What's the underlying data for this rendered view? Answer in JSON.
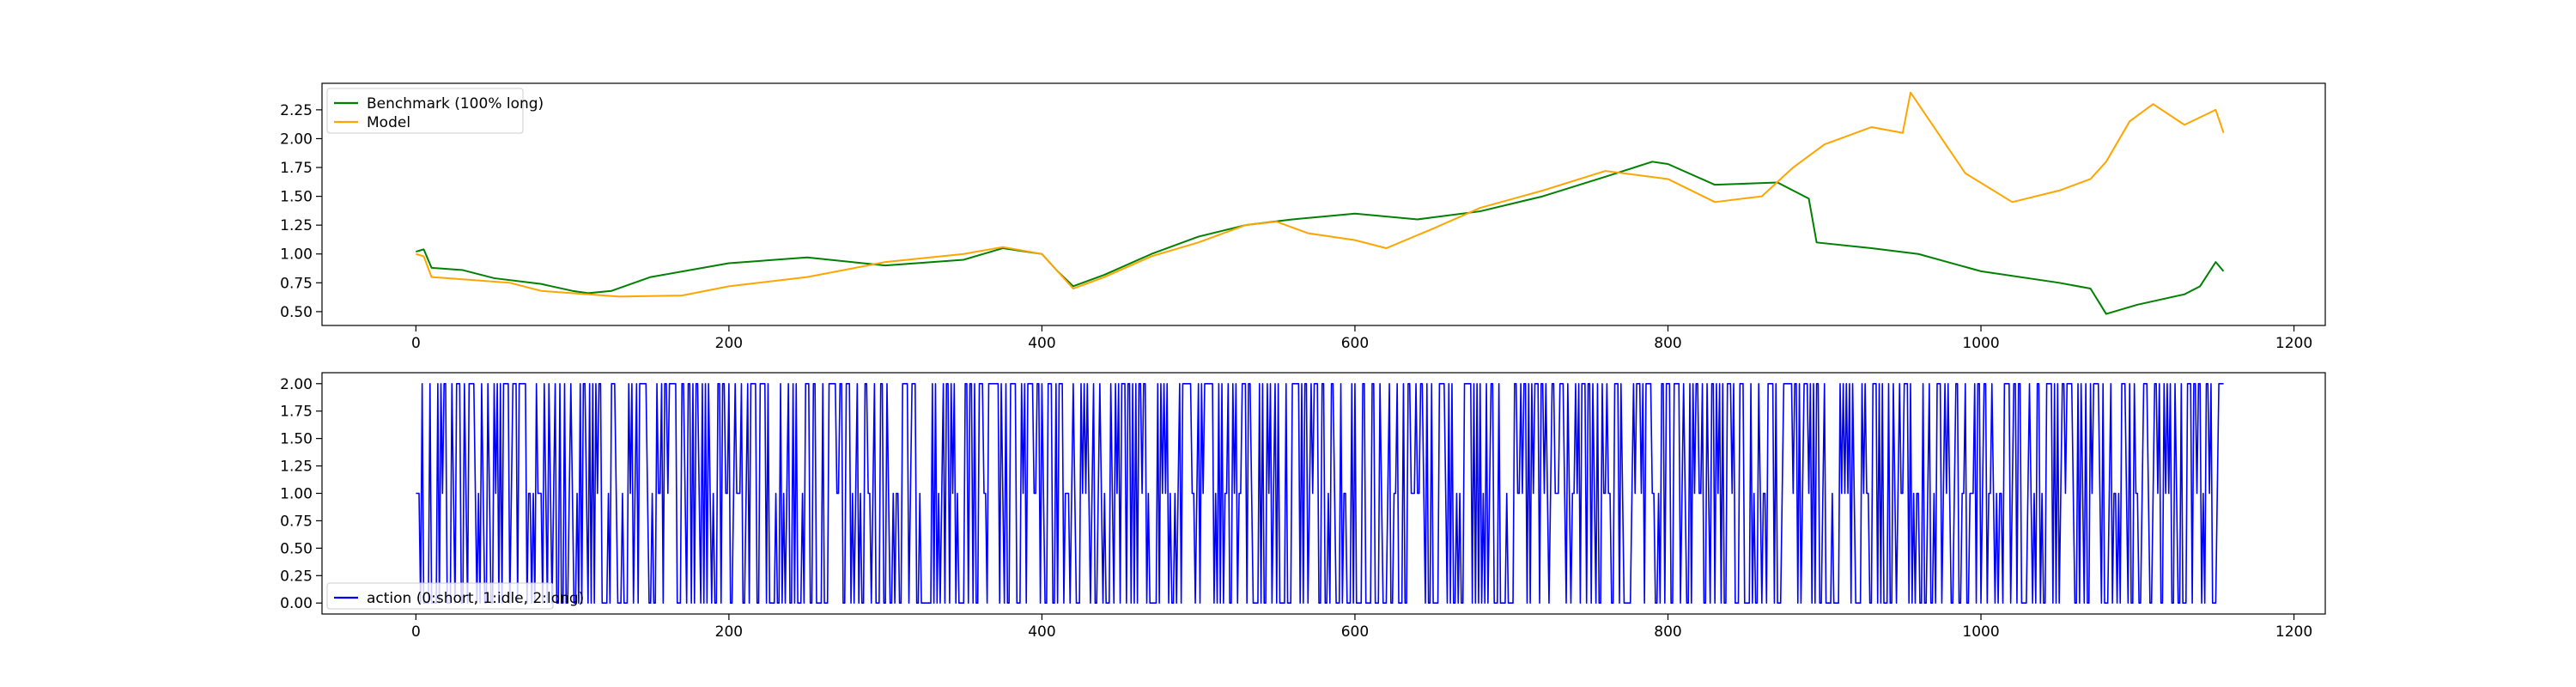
{
  "chart_data": [
    {
      "type": "line",
      "title": "",
      "xlabel": "",
      "ylabel": "",
      "xlim": [
        -60,
        1220
      ],
      "ylim": [
        0.38,
        2.48
      ],
      "x_ticks": [
        0,
        200,
        400,
        600,
        800,
        1000,
        1200
      ],
      "y_ticks": [
        0.5,
        0.75,
        1.0,
        1.25,
        1.5,
        1.75,
        2.0,
        2.25
      ],
      "y_tick_labels": [
        "0.50",
        "0.75",
        "1.00",
        "1.25",
        "1.50",
        "1.75",
        "2.00",
        "2.25"
      ],
      "grid": false,
      "legend_position": "top-left",
      "series": [
        {
          "name": "Benchmark (100% long)",
          "color": "#008000",
          "x": [
            0,
            5,
            10,
            30,
            50,
            80,
            100,
            110,
            125,
            150,
            200,
            250,
            300,
            350,
            375,
            400,
            410,
            420,
            440,
            470,
            500,
            530,
            560,
            600,
            640,
            680,
            720,
            760,
            790,
            800,
            830,
            870,
            890,
            895,
            930,
            960,
            1000,
            1050,
            1070,
            1080,
            1100,
            1130,
            1140,
            1150,
            1155
          ],
          "values": [
            1.02,
            1.04,
            0.88,
            0.86,
            0.79,
            0.74,
            0.68,
            0.66,
            0.68,
            0.8,
            0.92,
            0.97,
            0.9,
            0.95,
            1.05,
            1.0,
            0.85,
            0.72,
            0.82,
            1.0,
            1.15,
            1.25,
            1.3,
            1.35,
            1.3,
            1.37,
            1.5,
            1.67,
            1.8,
            1.78,
            1.6,
            1.62,
            1.48,
            1.1,
            1.05,
            1.0,
            0.85,
            0.75,
            0.7,
            0.48,
            0.56,
            0.65,
            0.72,
            0.93,
            0.85
          ]
        },
        {
          "name": "Model",
          "color": "#ffa500",
          "x": [
            0,
            5,
            10,
            30,
            60,
            80,
            100,
            130,
            170,
            200,
            250,
            300,
            350,
            375,
            400,
            410,
            420,
            440,
            470,
            500,
            530,
            550,
            570,
            600,
            620,
            650,
            680,
            720,
            760,
            800,
            830,
            860,
            880,
            900,
            930,
            950,
            955,
            970,
            990,
            1020,
            1050,
            1070,
            1080,
            1095,
            1110,
            1130,
            1150,
            1155
          ],
          "values": [
            1.0,
            0.98,
            0.8,
            0.78,
            0.75,
            0.68,
            0.66,
            0.63,
            0.64,
            0.72,
            0.8,
            0.93,
            1.0,
            1.06,
            1.0,
            0.85,
            0.7,
            0.8,
            0.98,
            1.1,
            1.25,
            1.28,
            1.18,
            1.12,
            1.05,
            1.22,
            1.4,
            1.55,
            1.72,
            1.65,
            1.45,
            1.5,
            1.75,
            1.95,
            2.1,
            2.05,
            2.4,
            2.1,
            1.7,
            1.45,
            1.55,
            1.65,
            1.8,
            2.15,
            2.3,
            2.12,
            2.25,
            2.05
          ]
        }
      ]
    },
    {
      "type": "line",
      "title": "",
      "xlabel": "",
      "ylabel": "",
      "xlim": [
        -60,
        1220
      ],
      "ylim": [
        -0.1,
        2.1
      ],
      "x_ticks": [
        0,
        200,
        400,
        600,
        800,
        1000,
        1200
      ],
      "y_ticks": [
        0.0,
        0.25,
        0.5,
        0.75,
        1.0,
        1.25,
        1.5,
        1.75,
        2.0
      ],
      "y_tick_labels": [
        "0.00",
        "0.25",
        "0.50",
        "0.75",
        "1.00",
        "1.25",
        "1.50",
        "1.75",
        "2.00"
      ],
      "grid": false,
      "legend_position": "bottom-left",
      "series": [
        {
          "name": "action (0:short, 1:idle, 2:long)",
          "color": "#0000ff",
          "x_start": 0,
          "x_end": 1155,
          "values_note": "",
          "values": []
        }
      ]
    }
  ]
}
